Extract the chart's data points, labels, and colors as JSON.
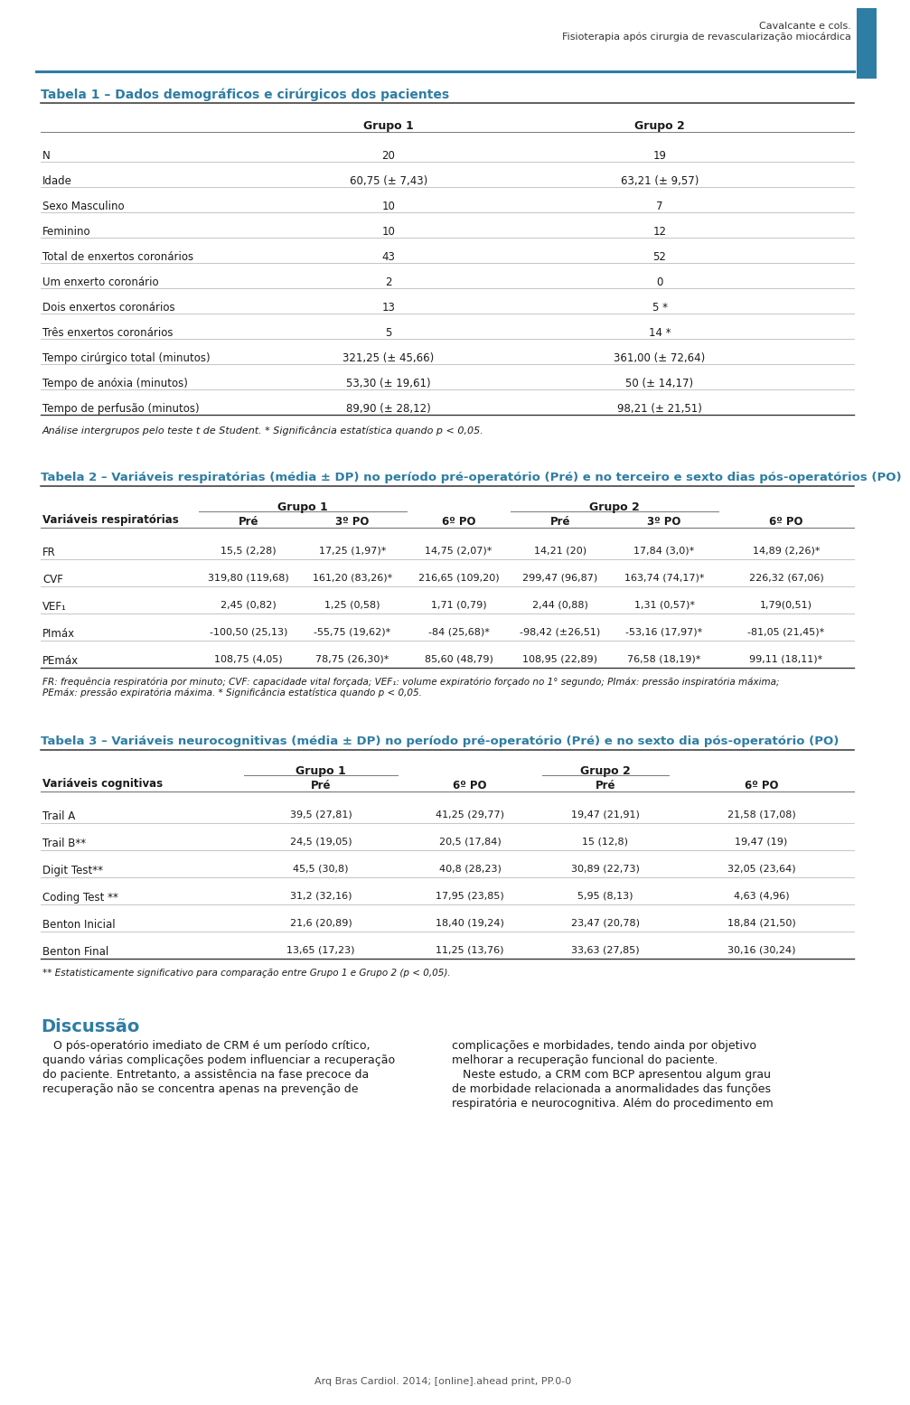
{
  "header_right_line1": "Cavalcante e cols.",
  "header_right_line2": "Fisioterapia após cirurgia de revascularização miocárdica",
  "header_bar_color": "#2e7da4",
  "table1_title": "Tabela 1 – Dados demográficos e cirúrgicos dos pacientes",
  "table1_title_color": "#2e7da4",
  "table1_rows": [
    [
      "N",
      "20",
      "19"
    ],
    [
      "Idade",
      "60,75 (± 7,43)",
      "63,21 (± 9,57)"
    ],
    [
      "Sexo Masculino",
      "10",
      "7"
    ],
    [
      "Feminino",
      "10",
      "12"
    ],
    [
      "Total de enxertos coronários",
      "43",
      "52"
    ],
    [
      "Um enxerto coronário",
      "2",
      "0"
    ],
    [
      "Dois enxertos coronários",
      "13",
      "5 *"
    ],
    [
      "Três enxertos coronários",
      "5",
      "14 *"
    ],
    [
      "Tempo cirúrgico total (minutos)",
      "321,25 (± 45,66)",
      "361,00 (± 72,64)"
    ],
    [
      "Tempo de anóxia (minutos)",
      "53,30 (± 19,61)",
      "50 (± 14,17)"
    ],
    [
      "Tempo de perfusão (minutos)",
      "89,90 (± 28,12)",
      "98,21 (± 21,51)"
    ]
  ],
  "table1_footnote": "Análise intergrupos pelo teste t de Student. * Significância estatística quando p < 0,05.",
  "table2_title": "Tabela 2 – Variáveis respiratórias (média ± DP) no período pré-operatório (Pré) e no terceiro e sexto dias pós-operatórios (PO)",
  "table2_title_color": "#2e7da4",
  "table2_rows": [
    [
      "FR",
      "15,5 (2,28)",
      "17,25 (1,97)*",
      "14,75 (2,07)*",
      "14,21 (20)",
      "17,84 (3,0)*",
      "14,89 (2,26)*"
    ],
    [
      "CVF",
      "319,80 (119,68)",
      "161,20 (83,26)*",
      "216,65 (109,20)",
      "299,47 (96,87)",
      "163,74 (74,17)*",
      "226,32 (67,06)"
    ],
    [
      "VEF₁",
      "2,45 (0,82)",
      "1,25 (0,58)",
      "1,71 (0,79)",
      "2,44 (0,88)",
      "1,31 (0,57)*",
      "1,79(0,51)"
    ],
    [
      "PImáx",
      "-100,50 (25,13)",
      "-55,75 (19,62)*",
      "-84 (25,68)*",
      "-98,42 (±26,51)",
      "-53,16 (17,97)*",
      "-81,05 (21,45)*"
    ],
    [
      "PEmáx",
      "108,75 (4,05)",
      "78,75 (26,30)*",
      "85,60 (48,79)",
      "108,95 (22,89)",
      "76,58 (18,19)*",
      "99,11 (18,11)*"
    ]
  ],
  "table2_footnote": [
    "FR: frequência respiratória por minuto; CVF: capacidade vital forçada; VEF₁: volume expiratório forçado no 1° segundo; PImáx: pressão inspiratória máxima;",
    "PEmáx: pressão expiratória máxima. * Significância estatística quando p < 0,05."
  ],
  "table3_title": "Tabela 3 – Variáveis neurocognitivas (média ± DP) no período pré-operatório (Pré) e no sexto dia pós-operatório (PO)",
  "table3_title_color": "#2e7da4",
  "table3_rows": [
    [
      "Trail A",
      "39,5 (27,81)",
      "41,25 (29,77)",
      "19,47 (21,91)",
      "21,58 (17,08)"
    ],
    [
      "Trail B**",
      "24,5 (19,05)",
      "20,5 (17,84)",
      "15 (12,8)",
      "19,47 (19)"
    ],
    [
      "Digit Test**",
      "45,5 (30,8)",
      "40,8 (28,23)",
      "30,89 (22,73)",
      "32,05 (23,64)"
    ],
    [
      "Coding Test **",
      "31,2 (32,16)",
      "17,95 (23,85)",
      "5,95 (8,13)",
      "4,63 (4,96)"
    ],
    [
      "Benton Inicial",
      "21,6 (20,89)",
      "18,40 (19,24)",
      "23,47 (20,78)",
      "18,84 (21,50)"
    ],
    [
      "Benton Final",
      "13,65 (17,23)",
      "11,25 (13,76)",
      "33,63 (27,85)",
      "30,16 (30,24)"
    ]
  ],
  "table3_footnote": "** Estatisticamente significativo para comparação entre Grupo 1 e Grupo 2 (p < 0,05).",
  "discussion_title": "Discussão",
  "discussion_title_color": "#2e7da4",
  "discussion_col1_lines": [
    "   O pós-operatório imediato de CRM é um período crítico,",
    "quando várias complicações podem influenciar a recuperação",
    "do paciente. Entretanto, a assistência na fase precoce da",
    "recuperação não se concentra apenas na prevenção de"
  ],
  "discussion_col2_lines": [
    "complicações e morbidades, tendo ainda por objetivo",
    "melhorar a recuperação funcional do paciente.",
    "   Neste estudo, a CRM com BCP apresentou algum grau",
    "de morbidade relacionada a anormalidades das funções",
    "respiratória e neurocognitiva. Além do procedimento em"
  ],
  "footer_text": "Arq Bras Cardiol. 2014; [online].ahead print, PP.0-0",
  "bg_color": "#ffffff",
  "text_color": "#1a1a1a",
  "dark_line_color": "#333333",
  "mid_line_color": "#777777",
  "light_line_color": "#bbbbbb"
}
